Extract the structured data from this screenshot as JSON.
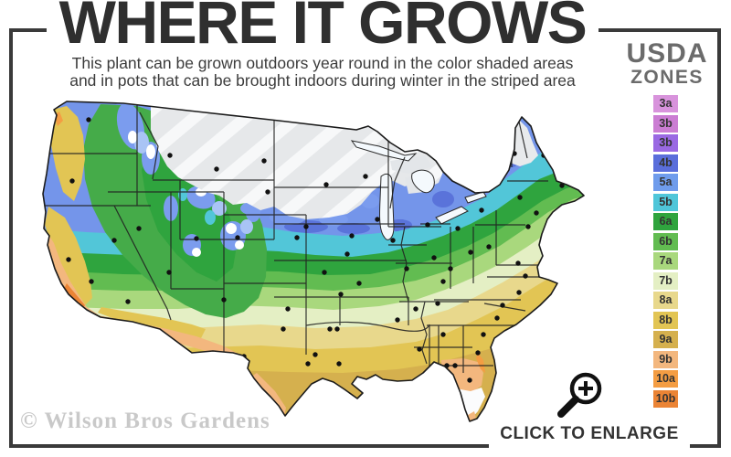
{
  "title": "WHERE IT GROWS",
  "subtitle": {
    "line1": "This plant can be grown outdoors year round in the color shaded areas",
    "line2": "and in pots that can be brought indoors during winter in the striped area"
  },
  "legend": {
    "heading_line1": "USDA",
    "heading_line2": "ZONES",
    "zones": [
      {
        "label": "3a",
        "color": "#d893dc"
      },
      {
        "label": "3b",
        "color": "#cb7dd3"
      },
      {
        "label": "3b",
        "color": "#9a69e3"
      },
      {
        "label": "4b",
        "color": "#5a6edb"
      },
      {
        "label": "5a",
        "color": "#6f9cec"
      },
      {
        "label": "5b",
        "color": "#4fc6d9"
      },
      {
        "label": "6a",
        "color": "#2fa43e"
      },
      {
        "label": "6b",
        "color": "#62bc51"
      },
      {
        "label": "7a",
        "color": "#a9d87d"
      },
      {
        "label": "7b",
        "color": "#e4efc4"
      },
      {
        "label": "8a",
        "color": "#e8d88c"
      },
      {
        "label": "8b",
        "color": "#e2c554"
      },
      {
        "label": "9a",
        "color": "#d5b04e"
      },
      {
        "label": "9b",
        "color": "#f3b77e"
      },
      {
        "label": "10a",
        "color": "#f49d43"
      },
      {
        "label": "10b",
        "color": "#eb8435"
      }
    ]
  },
  "watermark": "© Wilson Bros Gardens",
  "enlarge": {
    "label": "CLICK TO ENLARGE",
    "icon": "magnifier-plus-icon"
  },
  "colors": {
    "frame_color": "#3a3a3a",
    "title_color": "#2f2f2f",
    "subtitle_color": "#3c3c3c",
    "legend_heading_color": "#6b6b6b",
    "watermark_color": "#c9c9c9",
    "enlarge_color": "#333333",
    "striped_area_fill": "#e6e8ea",
    "stripe_line": "#f7f8f9",
    "map_outline": "#1b1b1b",
    "city_dot": "#111111"
  }
}
